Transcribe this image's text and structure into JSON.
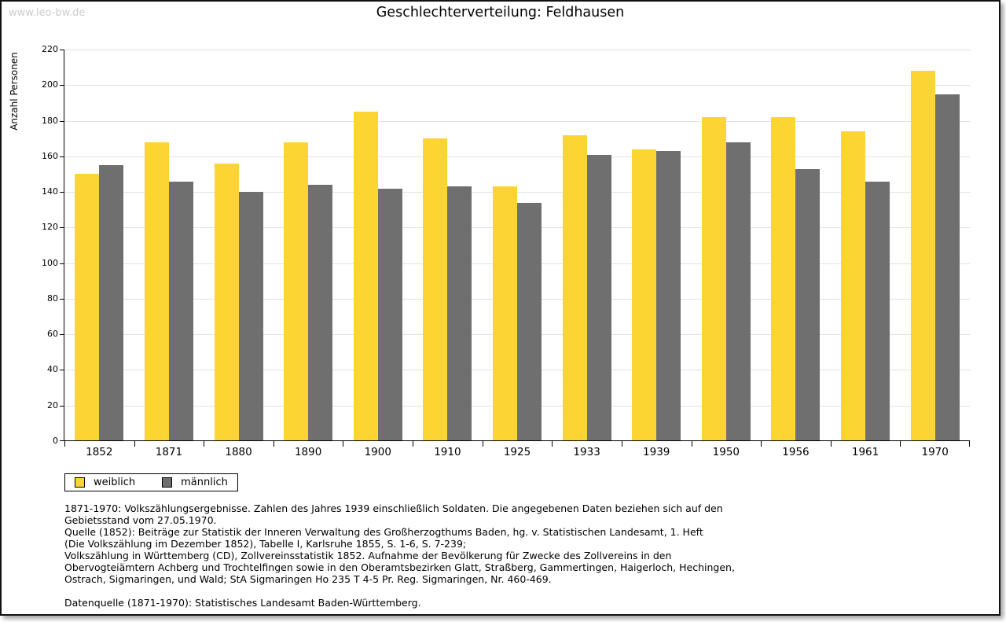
{
  "watermark": "www.leo-bw.de",
  "title": "Geschlechterverteilung: Feldhausen",
  "chart_data": {
    "type": "bar",
    "title": "Geschlechterverteilung: Feldhausen",
    "xlabel": "",
    "ylabel": "Anzahl Personen",
    "categories": [
      "1852",
      "1871",
      "1880",
      "1890",
      "1900",
      "1910",
      "1925",
      "1933",
      "1939",
      "1950",
      "1956",
      "1961",
      "1970"
    ],
    "series": [
      {
        "name": "weiblich",
        "color": "#fcd532",
        "values": [
          150,
          168,
          156,
          168,
          185,
          170,
          143,
          172,
          164,
          182,
          182,
          174,
          208
        ]
      },
      {
        "name": "männlich",
        "color": "#706f6f",
        "values": [
          155,
          146,
          140,
          144,
          142,
          143,
          134,
          161,
          163,
          168,
          153,
          146,
          195
        ]
      }
    ],
    "ylim": [
      0,
      220
    ],
    "ytick_step": 20,
    "grid": true,
    "gridline_color": "#e2e2e2",
    "legend_position": "bottom-left"
  },
  "footer": {
    "lines": [
      "1871-1970: Volkszählungsergebnisse. Zahlen des Jahres 1939 einschließlich Soldaten. Die angegebenen Daten beziehen sich auf den",
      "Gebietsstand vom 27.05.1970.",
      "Quelle (1852): Beiträge zur Statistik der Inneren Verwaltung des Großherzogthums Baden, hg. v. Statistischen Landesamt, 1. Heft",
      "(Die Volkszählung im Dezember 1852), Tabelle I, Karlsruhe 1855, S. 1-6, S. 7-239;",
      "Volkszählung in Württemberg (CD), Zollvereinsstatistik 1852. Aufnahme der Bevölkerung für Zwecke des Zollvereins in den",
      "Obervogteiämtern Achberg und Trochtelfingen sowie in den Oberamtsbezirken Glatt, Straßberg, Gammertingen, Haigerloch, Hechingen,",
      "Ostrach, Sigmaringen, und Wald; StA Sigmaringen Ho 235 T 4-5 Pr. Reg. Sigmaringen, Nr. 460-469."
    ],
    "datasource": "Datenquelle (1871-1970): Statistisches Landesamt Baden-Württemberg."
  }
}
